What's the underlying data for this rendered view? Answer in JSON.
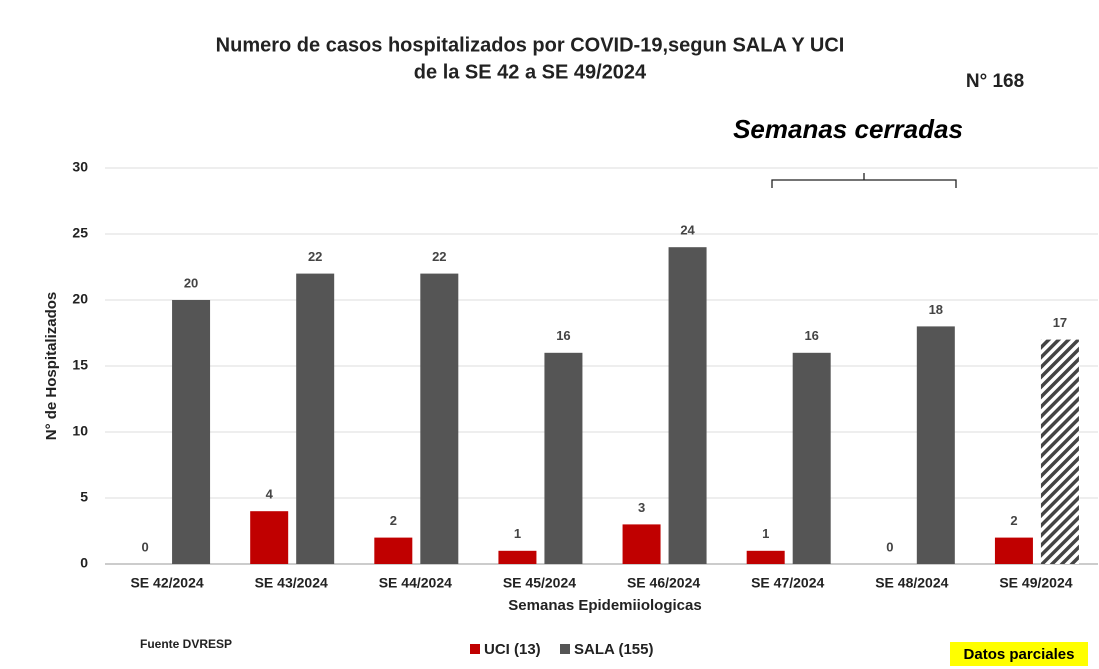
{
  "chart_data": {
    "type": "bar",
    "title": "Numero de casos hospitalizados por COVID-19,segun SALA Y UCI",
    "subtitle": "de la SE 42 a SE 49/2024",
    "report_number": "N° 168",
    "annotation": "Semanas cerradas",
    "source": "Fuente DVRESP",
    "note": "Datos parciales",
    "x_label": "Semanas Epidemiiologicas",
    "y_label": "N° de Hospitalizados",
    "categories": [
      "SE 42/2024",
      "SE 43/2024",
      "SE 44/2024",
      "SE 45/2024",
      "SE 46/2024",
      "SE 47/2024",
      "SE 48/2024",
      "SE 49/2024"
    ],
    "series": [
      {
        "name": "UCI (13)",
        "color": "#c00000",
        "values": [
          0,
          4,
          2,
          1,
          3,
          1,
          0,
          2
        ],
        "hatched": [
          false,
          false,
          false,
          false,
          false,
          false,
          false,
          false
        ]
      },
      {
        "name": "SALA (155)",
        "color": "#555555",
        "values": [
          20,
          22,
          22,
          16,
          24,
          16,
          18,
          17
        ],
        "hatched": [
          false,
          false,
          false,
          false,
          false,
          false,
          false,
          true
        ]
      }
    ],
    "ylim": [
      0,
      30
    ],
    "yticks": [
      0,
      5,
      10,
      15,
      20,
      25,
      30
    ],
    "grid": true,
    "legend": "bottom"
  }
}
